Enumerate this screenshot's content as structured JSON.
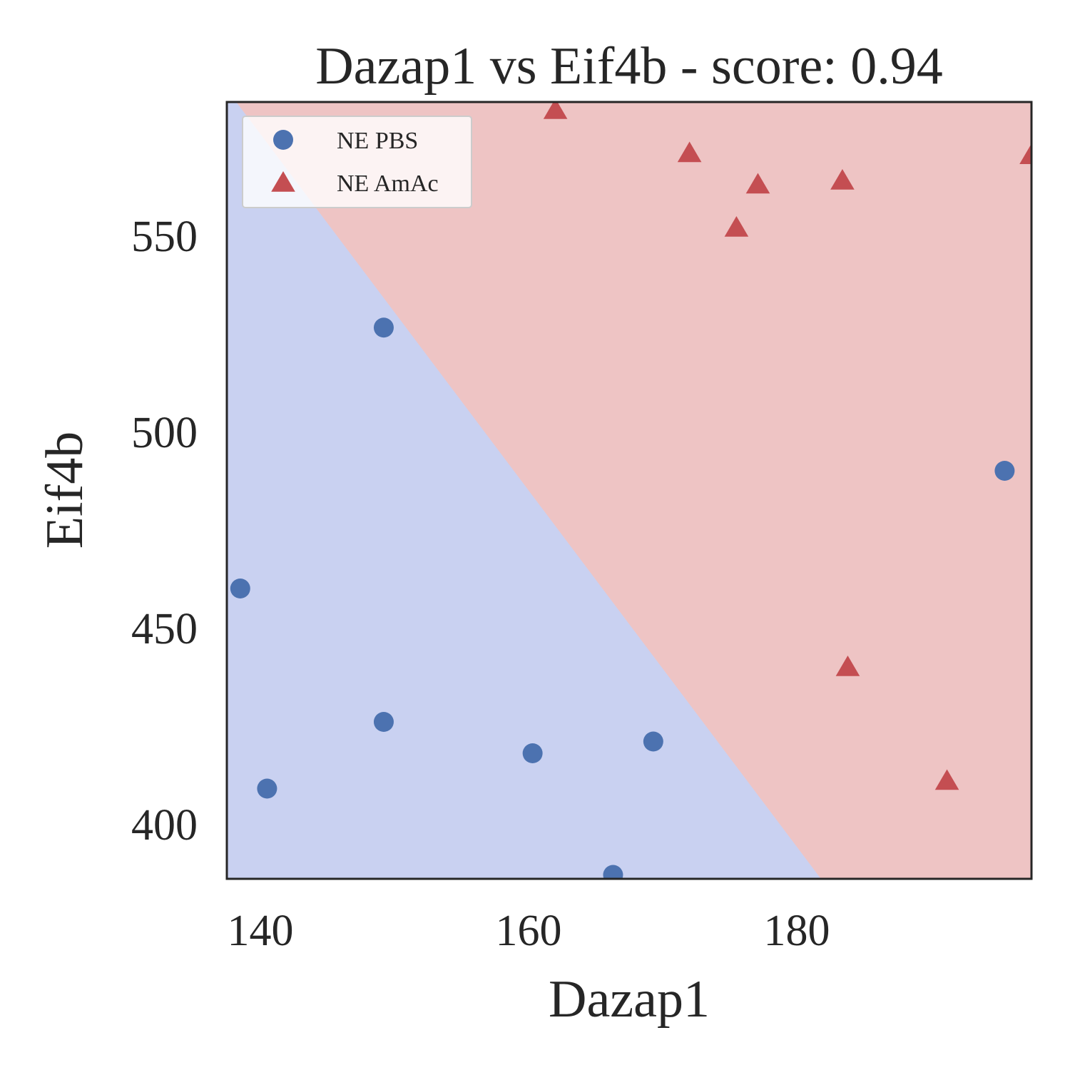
{
  "chart_data": {
    "type": "scatter",
    "title": "Dazap1 vs Eif4b - score: 0.94",
    "xlabel": "Dazap1",
    "ylabel": "Eif4b",
    "xlim": [
      137.5,
      197.5
    ],
    "ylim": [
      386,
      584
    ],
    "xticks": [
      140,
      160,
      180
    ],
    "yticks": [
      400,
      450,
      500,
      550
    ],
    "grid": false,
    "legend_position": "top-left",
    "decision_boundary": {
      "points": [
        [
          138.0,
          584.0
        ],
        [
          182.0,
          386.0
        ]
      ],
      "region_below_color": "#c9d1f1",
      "region_above_color": "#eec4c4"
    },
    "series": [
      {
        "name": "NE PBS",
        "marker": "circle",
        "color": "#4c72b0",
        "points": [
          [
            138.5,
            460.0
          ],
          [
            140.5,
            409.0
          ],
          [
            149.2,
            526.5
          ],
          [
            149.2,
            426.0
          ],
          [
            160.3,
            418.0
          ],
          [
            169.3,
            421.0
          ],
          [
            166.3,
            387.0
          ],
          [
            195.5,
            490.0
          ]
        ]
      },
      {
        "name": "NE AmAc",
        "marker": "triangle",
        "color": "#c44e52",
        "points": [
          [
            162.0,
            582.0
          ],
          [
            172.0,
            571.0
          ],
          [
            177.1,
            563.0
          ],
          [
            175.5,
            552.0
          ],
          [
            183.4,
            564.0
          ],
          [
            197.5,
            570.5
          ],
          [
            183.8,
            440.0
          ],
          [
            191.2,
            411.0
          ]
        ]
      }
    ]
  }
}
